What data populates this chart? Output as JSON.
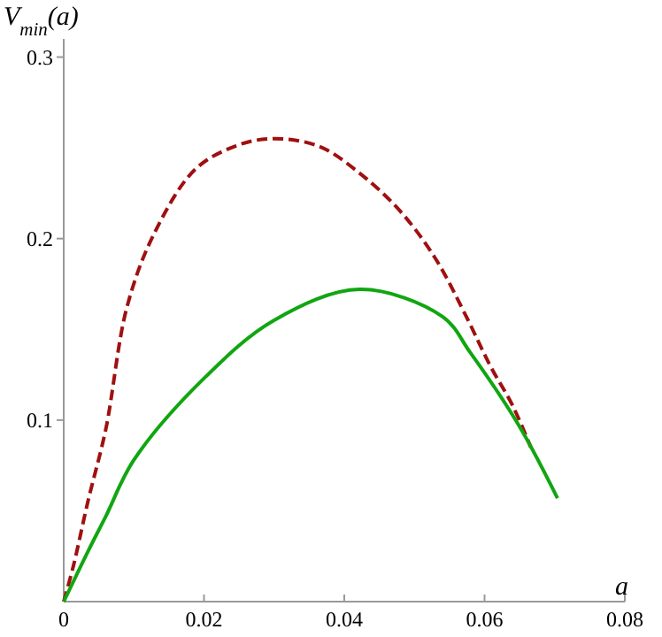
{
  "chart_data": {
    "type": "line",
    "xlabel": "a",
    "ylabel": "V$_{min}$(a)",
    "xlim": [
      0,
      0.08
    ],
    "ylim": [
      0,
      0.31
    ],
    "xticks": [
      0,
      0.02,
      0.04,
      0.06,
      0.08
    ],
    "yticks": [
      0.1,
      0.2,
      0.3
    ],
    "grid": false,
    "series": [
      {
        "color": "#a01010",
        "line_style": "dashed",
        "x": [
          0,
          0.0014,
          0.0035,
          0.006,
          0.009,
          0.0128,
          0.0187,
          0.0245,
          0.0296,
          0.0363,
          0.0422,
          0.048,
          0.053,
          0.0574,
          0.0608,
          0.064,
          0.0666
        ],
        "values": [
          0,
          0.02,
          0.056,
          0.095,
          0.162,
          0.202,
          0.238,
          0.251,
          0.255,
          0.251,
          0.236,
          0.215,
          0.189,
          0.157,
          0.13,
          0.108,
          0.085
        ]
      },
      {
        "color": "#11a611",
        "line_style": "solid",
        "x": [
          0,
          0.0035,
          0.006,
          0.01,
          0.02,
          0.03,
          0.0422,
          0.054,
          0.058,
          0.0649,
          0.0704
        ],
        "values": [
          0,
          0.028,
          0.047,
          0.078,
          0.123,
          0.155,
          0.172,
          0.157,
          0.137,
          0.097,
          0.057
        ]
      }
    ]
  }
}
